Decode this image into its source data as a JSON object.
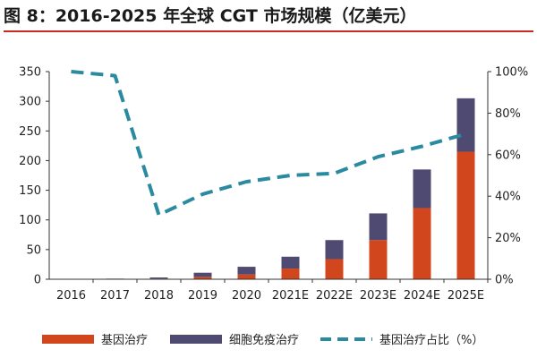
{
  "title": "图 8：2016-2025 年全球 CGT 市场规模（亿美元）",
  "colors": {
    "gene": "#d2461e",
    "cell": "#4f4a72",
    "ratio": "#2a8aa0",
    "title_rule": "#cc2a1e"
  },
  "chart_data": {
    "type": "bar",
    "stacked": true,
    "categories": [
      "2016",
      "2017",
      "2018",
      "2019",
      "2020",
      "2021E",
      "2022E",
      "2023E",
      "2024E",
      "2025E"
    ],
    "series": [
      {
        "name": "基因治疗",
        "kind": "bar",
        "axis": "left",
        "color": "#d2461e",
        "values": [
          0.3,
          0.5,
          1,
          4,
          8,
          18,
          34,
          66,
          120,
          215
        ]
      },
      {
        "name": "细胞免疫治疗",
        "kind": "bar",
        "axis": "left",
        "color": "#4f4a72",
        "values": [
          0.3,
          0.5,
          2,
          7,
          13,
          20,
          32,
          45,
          65,
          90
        ]
      },
      {
        "name": "基因治疗占比（%）",
        "kind": "line",
        "axis": "right",
        "color": "#2a8aa0",
        "dashed": true,
        "values": [
          100,
          98,
          31,
          41,
          47,
          50,
          51,
          59,
          64,
          70
        ]
      }
    ],
    "ylim_left": [
      0,
      350
    ],
    "yticks_left": [
      0,
      50,
      100,
      150,
      200,
      250,
      300,
      350
    ],
    "ylim_right": [
      0,
      100
    ],
    "yticks_right": [
      "0%",
      "20%",
      "40%",
      "60%",
      "80%",
      "100%"
    ],
    "xlabel": "",
    "ylabel": "",
    "grid": false,
    "legend": "bottom"
  }
}
